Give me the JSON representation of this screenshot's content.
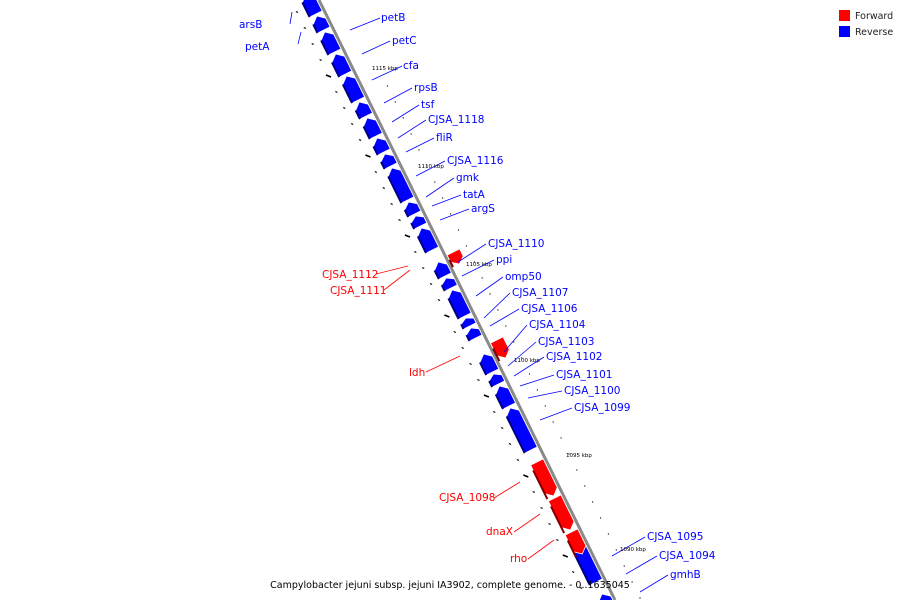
{
  "caption": "Campylobacter jejuni subsp. jejuni IA3902, complete genome. - 0..1635045",
  "legend": [
    {
      "label": "Forward",
      "color": "#ff0000"
    },
    {
      "label": "Reverse",
      "color": "#0000ff"
    }
  ],
  "colors": {
    "forward": "#ff0000",
    "reverse": "#0000ff",
    "backbone": "#808080"
  },
  "scale_labels": [
    "1115 kbp",
    "1110 kbp",
    "1105 kbp",
    "1100 kbp",
    "1095 kbp",
    "1090 kbp"
  ],
  "genes_reverse": [
    "arsB",
    "petA",
    "petB",
    "petC",
    "cfa",
    "rpsB",
    "tsf",
    "CJSA_1118",
    "fliR",
    "CJSA_1116",
    "gmk",
    "tatA",
    "argS",
    "CJSA_1110",
    "ppi",
    "omp50",
    "CJSA_1107",
    "CJSA_1106",
    "CJSA_1104",
    "CJSA_1103",
    "CJSA_1102",
    "CJSA_1101",
    "CJSA_1100",
    "CJSA_1099",
    "CJSA_1095",
    "CJSA_1094",
    "gmhB"
  ],
  "genes_forward": [
    "CJSA_1112",
    "CJSA_1111",
    "ldh",
    "CJSA_1098",
    "dnaX",
    "rho"
  ]
}
